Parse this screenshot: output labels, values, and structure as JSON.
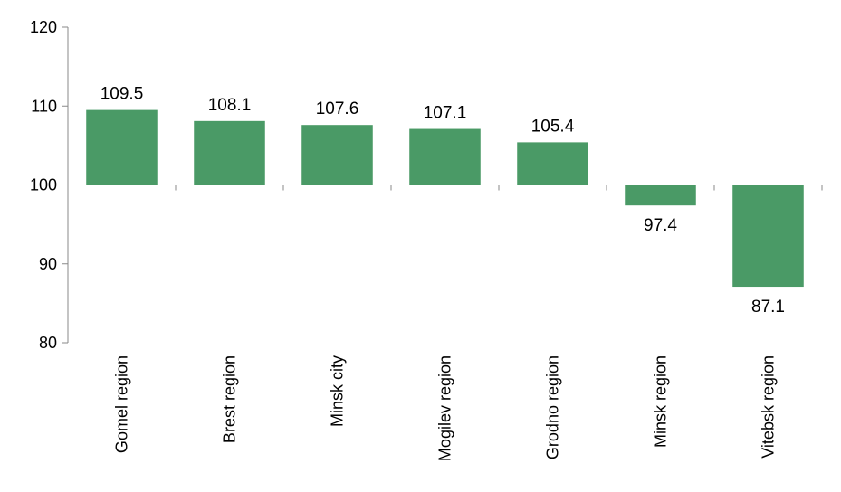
{
  "chart_data": {
    "type": "bar",
    "title": "",
    "xlabel": "",
    "ylabel": "",
    "baseline": 100,
    "ylim": [
      80,
      120
    ],
    "yticks": [
      80,
      90,
      100,
      110,
      120
    ],
    "yticks_labels": [
      "80",
      "90",
      "100",
      "110",
      "120"
    ],
    "categories": [
      "Gomel region",
      "Brest region",
      "Minsk city",
      "Mogilev region",
      "Grodno region",
      "Minsk region",
      "Vitebsk region"
    ],
    "values": [
      109.5,
      108.1,
      107.6,
      107.1,
      105.4,
      97.4,
      87.1
    ],
    "value_labels": [
      "109.5",
      "108.1",
      "107.6",
      "107.1",
      "105.4",
      "97.4",
      "87.1"
    ],
    "bar_color": "#4a9a66",
    "grid": false,
    "legend": "none"
  }
}
